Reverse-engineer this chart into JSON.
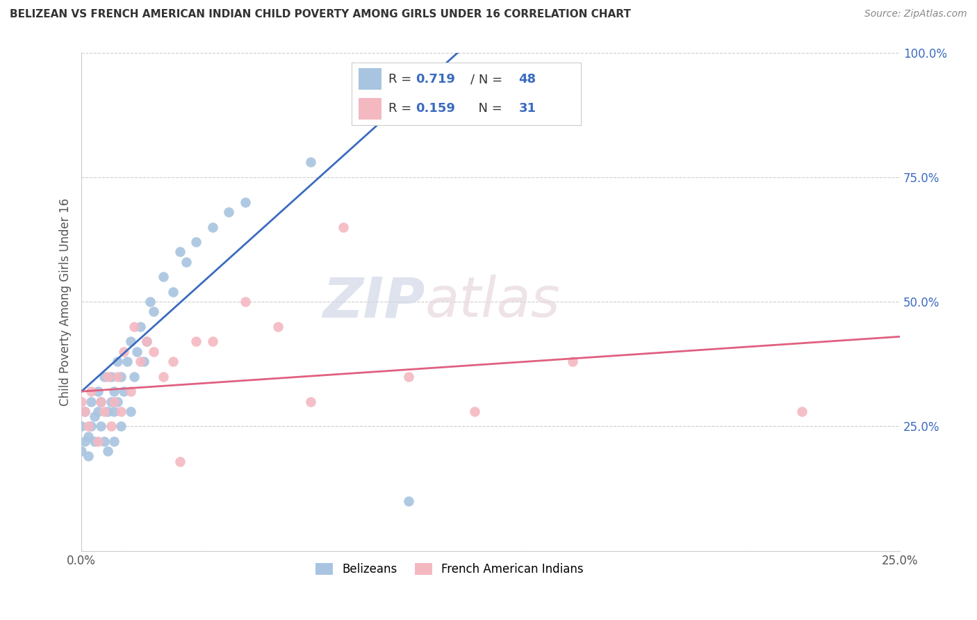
{
  "title": "BELIZEAN VS FRENCH AMERICAN INDIAN CHILD POVERTY AMONG GIRLS UNDER 16 CORRELATION CHART",
  "source": "Source: ZipAtlas.com",
  "ylabel": "Child Poverty Among Girls Under 16",
  "xlim": [
    0.0,
    0.25
  ],
  "ylim": [
    0.0,
    1.0
  ],
  "belizean_color": "#a8c4e0",
  "french_ai_color": "#f4b8c1",
  "belizean_line_color": "#3a6bbf",
  "french_ai_line_color": "#e06080",
  "belizean_R": 0.719,
  "belizean_N": 48,
  "french_ai_R": 0.159,
  "french_ai_N": 31,
  "watermark_zip": "ZIP",
  "watermark_atlas": "atlas",
  "belizean_x": [
    0.0,
    0.0,
    0.001,
    0.001,
    0.002,
    0.002,
    0.003,
    0.003,
    0.004,
    0.004,
    0.005,
    0.005,
    0.006,
    0.006,
    0.007,
    0.007,
    0.008,
    0.008,
    0.009,
    0.009,
    0.01,
    0.01,
    0.01,
    0.011,
    0.011,
    0.012,
    0.012,
    0.013,
    0.014,
    0.015,
    0.015,
    0.016,
    0.017,
    0.018,
    0.019,
    0.02,
    0.021,
    0.022,
    0.025,
    0.028,
    0.03,
    0.032,
    0.035,
    0.04,
    0.045,
    0.05,
    0.07,
    0.1
  ],
  "belizean_y": [
    0.2,
    0.25,
    0.22,
    0.28,
    0.19,
    0.23,
    0.25,
    0.3,
    0.22,
    0.27,
    0.28,
    0.32,
    0.25,
    0.3,
    0.22,
    0.35,
    0.2,
    0.28,
    0.3,
    0.35,
    0.22,
    0.28,
    0.32,
    0.3,
    0.38,
    0.25,
    0.35,
    0.32,
    0.38,
    0.28,
    0.42,
    0.35,
    0.4,
    0.45,
    0.38,
    0.42,
    0.5,
    0.48,
    0.55,
    0.52,
    0.6,
    0.58,
    0.62,
    0.65,
    0.68,
    0.7,
    0.78,
    0.1
  ],
  "french_ai_x": [
    0.0,
    0.001,
    0.002,
    0.003,
    0.005,
    0.006,
    0.007,
    0.008,
    0.009,
    0.01,
    0.011,
    0.012,
    0.013,
    0.015,
    0.016,
    0.018,
    0.02,
    0.022,
    0.025,
    0.028,
    0.03,
    0.035,
    0.04,
    0.05,
    0.06,
    0.07,
    0.08,
    0.1,
    0.12,
    0.15,
    0.22
  ],
  "french_ai_y": [
    0.3,
    0.28,
    0.25,
    0.32,
    0.22,
    0.3,
    0.28,
    0.35,
    0.25,
    0.3,
    0.35,
    0.28,
    0.4,
    0.32,
    0.45,
    0.38,
    0.42,
    0.4,
    0.35,
    0.38,
    0.18,
    0.42,
    0.42,
    0.5,
    0.45,
    0.3,
    0.65,
    0.35,
    0.28,
    0.38,
    0.28
  ],
  "bel_line_x": [
    0.0,
    0.115
  ],
  "bel_line_y": [
    0.32,
    1.0
  ],
  "fai_line_x": [
    0.0,
    0.25
  ],
  "fai_line_y": [
    0.32,
    0.43
  ]
}
